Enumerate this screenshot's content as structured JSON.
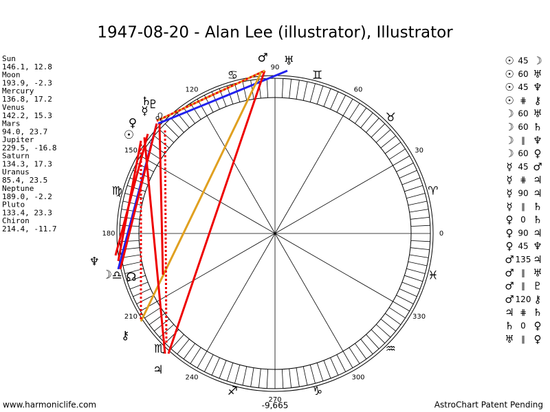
{
  "header": {
    "title": "1947-08-20 - Alan Lee (illustrator), Illustrator"
  },
  "planets": [
    {
      "name": "Sun",
      "position": "146.1, 12.8",
      "glyph": "☉"
    },
    {
      "name": "Moon",
      "position": "193.9, -2.3",
      "glyph": "☽"
    },
    {
      "name": "Mercury",
      "position": "136.8, 17.2",
      "glyph": "☿"
    },
    {
      "name": "Venus",
      "position": "142.2, 15.3",
      "glyph": "♀"
    },
    {
      "name": "Mars",
      "position": "94.0, 23.7",
      "glyph": "♂"
    },
    {
      "name": "Jupiter",
      "position": "229.5, -16.8",
      "glyph": "♃"
    },
    {
      "name": "Saturn",
      "position": "134.3, 17.3",
      "glyph": "♄"
    },
    {
      "name": "Uranus",
      "position": "85.4, 23.5",
      "glyph": "♅"
    },
    {
      "name": "Neptune",
      "position": "189.0, -2.2",
      "glyph": "♆"
    },
    {
      "name": "Pluto",
      "position": "133.4, 23.3",
      "glyph": "♇"
    },
    {
      "name": "Chiron",
      "position": "214.4, -11.7",
      "glyph": "⚷"
    }
  ],
  "node_glyph": "☊",
  "signs": [
    "♈",
    "♉",
    "♊",
    "♋",
    "♌",
    "♍",
    "♎",
    "♏",
    "♐",
    "♑",
    "♒",
    "♓"
  ],
  "degree_labels": [
    0,
    30,
    60,
    90,
    120,
    150,
    180,
    210,
    240,
    270,
    300,
    330
  ],
  "aspects": [
    [
      "☉",
      "45",
      "☽"
    ],
    [
      "☉",
      "60",
      "♅"
    ],
    [
      "☉",
      "45",
      "♆"
    ],
    [
      "☉",
      "⋕",
      "⚷"
    ],
    [
      "☽",
      "60",
      "♅"
    ],
    [
      "☽",
      "60",
      "♄"
    ],
    [
      "☽",
      "∥",
      "♆"
    ],
    [
      "☽",
      "60",
      "♀"
    ],
    [
      "☿",
      "45",
      "♂"
    ],
    [
      "☿",
      "⋕",
      "♃"
    ],
    [
      "☿",
      "90",
      "♃"
    ],
    [
      "☿",
      "∥",
      "♄"
    ],
    [
      "♀",
      "0",
      "♄"
    ],
    [
      "♀",
      "90",
      "♃"
    ],
    [
      "♀",
      "45",
      "♆"
    ],
    [
      "♂",
      "135",
      "♃"
    ],
    [
      "♂",
      "∥",
      "♅"
    ],
    [
      "♂",
      "∥",
      "♇"
    ],
    [
      "♂",
      "120",
      "⚷"
    ],
    [
      "♃",
      "⋕",
      "♄"
    ],
    [
      "♄",
      "0",
      "♀"
    ],
    [
      "♅",
      "∥",
      "♀"
    ]
  ],
  "footer": {
    "left": "www.harmoniclife.com",
    "center": "-9,665",
    "right": "AstroChart Patent Pending"
  }
}
